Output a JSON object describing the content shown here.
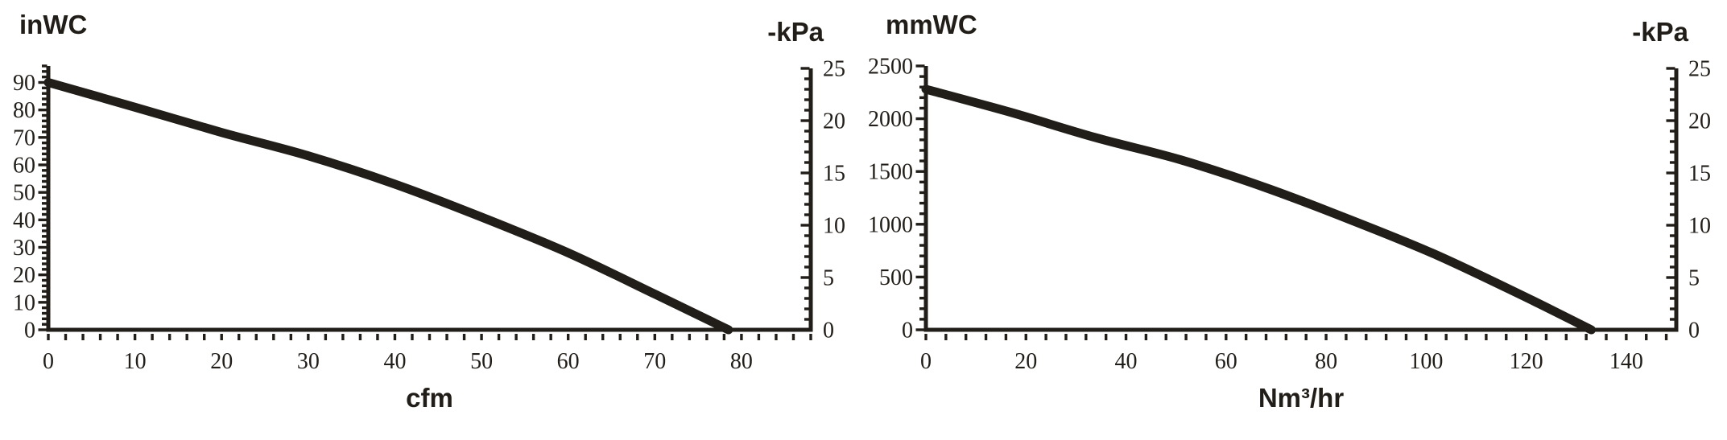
{
  "background": "#ffffff",
  "ink": "#211d18",
  "chart_data": [
    {
      "type": "line",
      "title": "",
      "x_unit": "cfm",
      "y_left_unit": "inWC",
      "y_right_unit": "-kPa",
      "x_range": [
        0,
        88
      ],
      "x_minor_step": 2,
      "x_tick_labels": [
        0,
        10,
        20,
        30,
        40,
        50,
        60,
        70,
        80
      ],
      "y_left_range": [
        0,
        96
      ],
      "y_left_minor_step": 2,
      "y_left_tick_labels": [
        0,
        10,
        20,
        30,
        40,
        50,
        60,
        70,
        80,
        90
      ],
      "y_right_range": [
        0,
        25
      ],
      "y_right_minor_step": 1,
      "y_right_tick_labels": [
        0,
        5,
        10,
        15,
        20,
        25
      ],
      "grid": false,
      "legend": false,
      "series": [
        {
          "name": "vacuum-flow-curve-imperial",
          "points": [
            [
              0,
              90
            ],
            [
              10,
              81
            ],
            [
              20,
              71.8
            ],
            [
              30,
              63.3
            ],
            [
              40,
              53
            ],
            [
              50,
              41
            ],
            [
              60,
              28
            ],
            [
              70,
              13
            ],
            [
              78.5,
              0
            ]
          ]
        }
      ]
    },
    {
      "type": "line",
      "title": "",
      "x_unit": "Nm³/hr",
      "y_left_unit": "mmWC",
      "y_right_unit": "-kPa",
      "x_range": [
        0,
        150
      ],
      "x_minor_step": 4,
      "x_tick_labels": [
        0,
        20,
        40,
        60,
        80,
        100,
        120,
        140
      ],
      "y_left_range": [
        0,
        2500
      ],
      "y_left_minor_step": 100,
      "y_left_tick_labels": [
        0,
        500,
        1000,
        1500,
        2000,
        2500
      ],
      "y_right_range": [
        0,
        25
      ],
      "y_right_minor_step": 1,
      "y_right_tick_labels": [
        0,
        5,
        10,
        15,
        20,
        25
      ],
      "grid": false,
      "legend": false,
      "series": [
        {
          "name": "vacuum-flow-curve-metric",
          "points": [
            [
              0,
              2280
            ],
            [
              17,
              2060
            ],
            [
              34,
              1820
            ],
            [
              51,
              1610
            ],
            [
              68,
              1345
            ],
            [
              85,
              1040
            ],
            [
              102,
              710
            ],
            [
              119,
              330
            ],
            [
              133,
              0
            ]
          ]
        }
      ]
    }
  ]
}
